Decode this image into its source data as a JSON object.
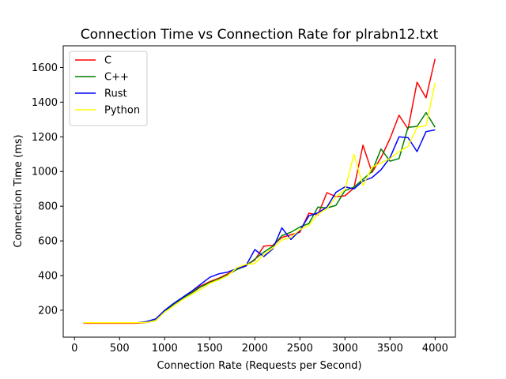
{
  "chart_data": {
    "type": "line",
    "title": "Connection Time vs Connection Rate for plrabn12.txt",
    "xlabel": "Connection Rate (Requests per Second)",
    "ylabel": "Connection Time (ms)",
    "xlim": [
      -125,
      4225
    ],
    "ylim": [
      45,
      1725
    ],
    "xticks": [
      0,
      500,
      1000,
      1500,
      2000,
      2500,
      3000,
      3500,
      4000
    ],
    "yticks": [
      200,
      400,
      600,
      800,
      1000,
      1200,
      1400,
      1600
    ],
    "grid": false,
    "legend": "top-left",
    "x": [
      100,
      200,
      300,
      400,
      500,
      600,
      700,
      800,
      900,
      1000,
      1100,
      1200,
      1300,
      1400,
      1500,
      1600,
      1700,
      1800,
      1900,
      2000,
      2100,
      2200,
      2300,
      2400,
      2500,
      2600,
      2700,
      2800,
      2900,
      3000,
      3100,
      3200,
      3300,
      3400,
      3500,
      3600,
      3700,
      3800,
      3900,
      4000
    ],
    "series": [
      {
        "name": "C",
        "color": "#ff0000",
        "values": [
          125,
          125,
          125,
          125,
          125,
          125,
          125,
          130,
          140,
          195,
          235,
          270,
          305,
          340,
          365,
          385,
          410,
          440,
          460,
          490,
          570,
          575,
          620,
          635,
          650,
          760,
          750,
          878,
          855,
          860,
          905,
          1152,
          995,
          1080,
          1190,
          1325,
          1245,
          1515,
          1425,
          1650
        ]
      },
      {
        "name": "C++",
        "color": "#008000",
        "values": [
          128,
          128,
          128,
          128,
          128,
          128,
          128,
          130,
          142,
          195,
          235,
          270,
          300,
          335,
          360,
          380,
          405,
          435,
          455,
          495,
          535,
          570,
          630,
          650,
          680,
          700,
          795,
          790,
          805,
          890,
          910,
          955,
          1000,
          1130,
          1060,
          1075,
          1255,
          1260,
          1340,
          1255
        ]
      },
      {
        "name": "Rust",
        "color": "#0000ff",
        "values": [
          128,
          128,
          128,
          128,
          128,
          128,
          128,
          135,
          150,
          200,
          240,
          275,
          310,
          350,
          390,
          410,
          420,
          440,
          455,
          550,
          510,
          555,
          675,
          608,
          660,
          745,
          762,
          795,
          880,
          912,
          900,
          945,
          965,
          1010,
          1080,
          1200,
          1195,
          1115,
          1230,
          1240
        ]
      },
      {
        "name": "Python",
        "color": "#ffff00",
        "values": [
          128,
          128,
          128,
          128,
          128,
          128,
          128,
          130,
          140,
          190,
          225,
          262,
          292,
          322,
          355,
          375,
          400,
          445,
          465,
          470,
          520,
          560,
          605,
          620,
          665,
          690,
          755,
          785,
          855,
          895,
          1100,
          920,
          1025,
          1050,
          1075,
          1115,
          1145,
          1255,
          1265,
          1510
        ]
      }
    ]
  }
}
